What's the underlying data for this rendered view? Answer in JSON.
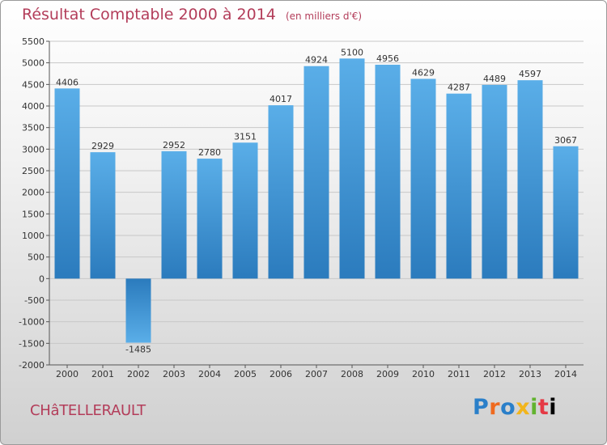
{
  "title": "Résultat Comptable 2000 à 2014",
  "subtitle": "(en milliers d'€)",
  "city": "CHâTELLERAULT",
  "logo": {
    "letters": [
      "P",
      "r",
      "o",
      "x",
      "i",
      "t",
      "i"
    ]
  },
  "colors": {
    "title": "#b33d5a",
    "bar_light": "#5aaee8",
    "bar_dark": "#2b7bbd",
    "grid": "#c8c8c8"
  },
  "chart_data": {
    "type": "bar",
    "title": "Résultat Comptable 2000 à 2014",
    "ylabel": "en milliers d'€",
    "xlabel": "",
    "ylim": [
      -2000,
      5500
    ],
    "yticks": [
      -2000,
      -1500,
      -1000,
      -500,
      0,
      500,
      1000,
      1500,
      2000,
      2500,
      3000,
      3500,
      4000,
      4500,
      5000,
      5500
    ],
    "grid": true,
    "categories": [
      "2000",
      "2001",
      "2002",
      "2003",
      "2004",
      "2005",
      "2006",
      "2007",
      "2008",
      "2009",
      "2010",
      "2011",
      "2012",
      "2013",
      "2014"
    ],
    "values": [
      4406,
      2929,
      -1485,
      2952,
      2780,
      3151,
      4017,
      4924,
      5100,
      4956,
      4629,
      4287,
      4489,
      4597,
      3067
    ]
  }
}
